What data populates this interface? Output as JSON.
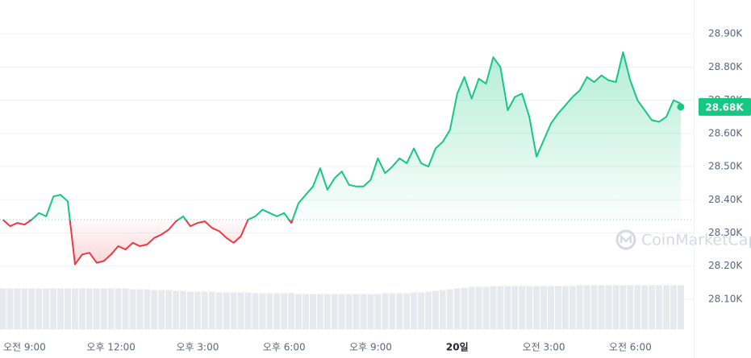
{
  "chart_data": {
    "type": "line",
    "x": [
      8.25,
      8.5,
      8.75,
      9,
      9.25,
      9.5,
      9.75,
      10,
      10.25,
      10.5,
      10.75,
      11,
      11.25,
      11.5,
      11.75,
      12,
      12.25,
      12.5,
      12.75,
      13,
      13.25,
      13.5,
      13.75,
      14,
      14.25,
      14.5,
      14.75,
      15,
      15.25,
      15.5,
      15.75,
      16,
      16.25,
      16.5,
      16.75,
      17,
      17.25,
      17.5,
      17.75,
      18,
      18.25,
      18.5,
      18.75,
      19,
      19.25,
      19.5,
      19.75,
      20,
      20.25,
      20.5,
      20.75,
      21,
      21.25,
      21.5,
      21.75,
      22,
      22.25,
      22.5,
      22.75,
      23,
      23.25,
      23.5,
      23.75,
      24,
      24.25,
      24.5,
      24.75,
      25,
      25.25,
      25.5,
      25.75,
      26,
      26.25,
      26.5,
      26.75,
      27,
      27.25,
      27.5,
      27.75,
      28,
      28.25,
      28.5,
      28.75,
      29,
      29.25,
      29.5,
      29.75,
      30,
      30.25,
      30.5,
      30.75,
      31,
      31.25,
      31.5,
      31.75
    ],
    "values": [
      28340,
      28320,
      28330,
      28325,
      28340,
      28360,
      28350,
      28410,
      28415,
      28395,
      28205,
      28235,
      28240,
      28210,
      28215,
      28235,
      28260,
      28250,
      28270,
      28260,
      28265,
      28285,
      28295,
      28310,
      28335,
      28350,
      28320,
      28330,
      28335,
      28315,
      28305,
      28285,
      28270,
      28290,
      28340,
      28350,
      28370,
      28360,
      28350,
      28360,
      28330,
      28390,
      28415,
      28440,
      28495,
      28430,
      28465,
      28485,
      28445,
      28440,
      28440,
      28460,
      28525,
      28480,
      28500,
      28525,
      28510,
      28555,
      28510,
      28500,
      28555,
      28575,
      28610,
      28720,
      28770,
      28705,
      28765,
      28750,
      28830,
      28800,
      28670,
      28710,
      28720,
      28650,
      28530,
      28580,
      28630,
      28660,
      28685,
      28710,
      28730,
      28770,
      28755,
      28775,
      28760,
      28755,
      28845,
      28760,
      28700,
      28670,
      28640,
      28635,
      28650,
      28700,
      28690
    ],
    "volume": [
      52,
      52,
      52,
      52,
      52,
      52,
      52,
      52,
      52,
      52,
      52,
      52,
      52,
      52,
      52,
      52,
      52,
      52,
      51,
      51,
      51,
      50,
      50,
      50,
      49,
      49,
      48,
      48,
      48,
      48,
      47,
      47,
      47,
      47,
      47,
      46,
      46,
      46,
      46,
      46,
      46,
      45,
      45,
      45,
      45,
      45,
      45,
      45,
      45,
      45,
      45,
      45,
      45,
      46,
      46,
      46,
      46,
      47,
      47,
      48,
      49,
      50,
      51,
      52,
      53,
      54,
      54,
      54,
      55,
      55,
      55,
      55,
      55,
      55,
      55,
      55,
      55,
      55,
      55,
      55,
      56,
      56,
      56,
      56,
      56,
      56,
      56,
      56,
      56,
      56,
      56,
      56,
      56,
      56,
      56
    ],
    "baseline": 28340,
    "up_color": "#16c784",
    "down_color": "#ea3943",
    "current_price": {
      "value": 28680,
      "label": "28.68K"
    },
    "watermark": "CoinMarketCap",
    "xlim": [
      8.15,
      32.2
    ],
    "xticks": [
      {
        "value": 9,
        "label": "오전 9:00"
      },
      {
        "value": 12,
        "label": "오후 12:00"
      },
      {
        "value": 15,
        "label": "오후 3:00"
      },
      {
        "value": 18,
        "label": "오후 6:00"
      },
      {
        "value": 21,
        "label": "오후 9:00"
      },
      {
        "value": 24,
        "label": "20일"
      },
      {
        "value": 27,
        "label": "오전 3:00"
      },
      {
        "value": 30,
        "label": "오전 6:00"
      }
    ],
    "ylim": [
      28010,
      29000
    ],
    "yticks": [
      {
        "value": 28100,
        "label": "28.10K"
      },
      {
        "value": 28200,
        "label": "28.20K"
      },
      {
        "value": 28300,
        "label": "28.30K"
      },
      {
        "value": 28400,
        "label": "28.40K"
      },
      {
        "value": 28500,
        "label": "28.50K"
      },
      {
        "value": 28600,
        "label": "28.60K"
      },
      {
        "value": 28700,
        "label": "28.70K"
      },
      {
        "value": 28800,
        "label": "28.80K"
      },
      {
        "value": 28900,
        "label": "28.90K"
      }
    ],
    "grid": true
  }
}
